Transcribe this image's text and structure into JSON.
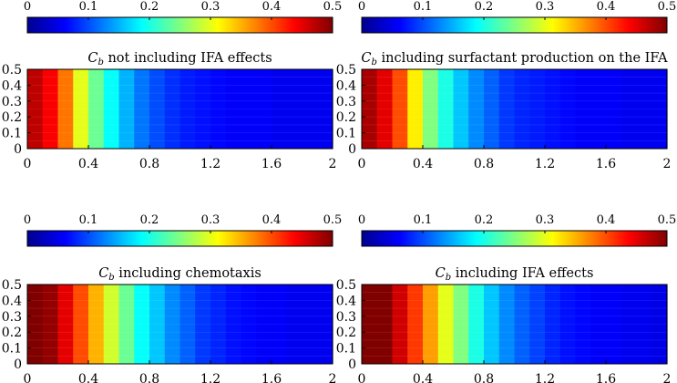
{
  "colorbar": {
    "ticks": [
      "0",
      "0.1",
      "0.2",
      "0.3",
      "0.4",
      "0.5"
    ],
    "range": [
      0,
      0.5
    ],
    "colormap": "jet"
  },
  "chart_data": [
    {
      "type": "heatmap",
      "title_main": "C",
      "title_sub": "b",
      "title_rest": " not including IFA effects",
      "x_ticks": [
        "0",
        "0.4",
        "0.8",
        "1.2",
        "1.6",
        "2"
      ],
      "y_ticks": [
        "0",
        "0.1",
        "0.2",
        "0.3",
        "0.4",
        "0.5"
      ],
      "xlim": [
        0,
        2
      ],
      "ylim": [
        0,
        0.5
      ],
      "clim": [
        0,
        0.5
      ],
      "column_x": [
        0.05,
        0.15,
        0.25,
        0.35,
        0.45,
        0.55,
        0.65,
        0.75,
        0.85,
        0.95,
        1.05,
        1.15,
        1.25,
        1.35,
        1.45,
        1.55,
        1.65,
        1.75,
        1.85,
        1.95
      ],
      "values": [
        0.47,
        0.44,
        0.38,
        0.3,
        0.24,
        0.19,
        0.15,
        0.12,
        0.1,
        0.085,
        0.075,
        0.07,
        0.065,
        0.06,
        0.06,
        0.06,
        0.055,
        0.055,
        0.055,
        0.055
      ]
    },
    {
      "type": "heatmap",
      "title_main": "C",
      "title_sub": "b",
      "title_rest": " including surfactant production on the IFA",
      "x_ticks": [
        "0",
        "0.4",
        "0.8",
        "1.2",
        "1.6",
        "2"
      ],
      "y_ticks": [
        "0",
        "0.1",
        "0.2",
        "0.3",
        "0.4",
        "0.5"
      ],
      "xlim": [
        0,
        2
      ],
      "ylim": [
        0,
        0.5
      ],
      "clim": [
        0,
        0.5
      ],
      "column_x": [
        0.05,
        0.15,
        0.25,
        0.35,
        0.45,
        0.55,
        0.65,
        0.75,
        0.85,
        0.95,
        1.05,
        1.15,
        1.25,
        1.35,
        1.45,
        1.55,
        1.65,
        1.75,
        1.85,
        1.95
      ],
      "values": [
        0.48,
        0.45,
        0.4,
        0.32,
        0.25,
        0.2,
        0.16,
        0.13,
        0.11,
        0.09,
        0.08,
        0.075,
        0.07,
        0.065,
        0.06,
        0.06,
        0.06,
        0.055,
        0.055,
        0.055
      ]
    },
    {
      "type": "heatmap",
      "title_main": "C",
      "title_sub": "b",
      "title_rest": " including chemotaxis",
      "x_ticks": [
        "0",
        "0.4",
        "0.8",
        "1.2",
        "1.6",
        "2"
      ],
      "y_ticks": [
        "0",
        "0.1",
        "0.2",
        "0.3",
        "0.4",
        "0.5"
      ],
      "xlim": [
        0,
        2
      ],
      "ylim": [
        0,
        0.5
      ],
      "clim": [
        0,
        0.5
      ],
      "column_x": [
        0.05,
        0.15,
        0.25,
        0.35,
        0.45,
        0.55,
        0.65,
        0.75,
        0.85,
        0.95,
        1.05,
        1.15,
        1.25,
        1.35,
        1.45,
        1.55,
        1.65,
        1.75,
        1.85,
        1.95
      ],
      "values": [
        0.5,
        0.49,
        0.45,
        0.4,
        0.35,
        0.29,
        0.24,
        0.19,
        0.16,
        0.13,
        0.11,
        0.09,
        0.08,
        0.07,
        0.065,
        0.06,
        0.06,
        0.055,
        0.055,
        0.055
      ]
    },
    {
      "type": "heatmap",
      "title_main": "C",
      "title_sub": "b",
      "title_rest": " including IFA effects",
      "x_ticks": [
        "0",
        "0.4",
        "0.8",
        "1.2",
        "1.6",
        "2"
      ],
      "y_ticks": [
        "0",
        "0.1",
        "0.2",
        "0.3",
        "0.4",
        "0.5"
      ],
      "xlim": [
        0,
        2
      ],
      "ylim": [
        0,
        0.5
      ],
      "clim": [
        0,
        0.5
      ],
      "column_x": [
        0.05,
        0.15,
        0.25,
        0.35,
        0.45,
        0.55,
        0.65,
        0.75,
        0.85,
        0.95,
        1.05,
        1.15,
        1.25,
        1.35,
        1.45,
        1.55,
        1.65,
        1.75,
        1.85,
        1.95
      ],
      "values": [
        0.5,
        0.5,
        0.46,
        0.41,
        0.36,
        0.3,
        0.25,
        0.2,
        0.16,
        0.13,
        0.11,
        0.095,
        0.08,
        0.07,
        0.065,
        0.06,
        0.06,
        0.055,
        0.055,
        0.05
      ]
    }
  ]
}
